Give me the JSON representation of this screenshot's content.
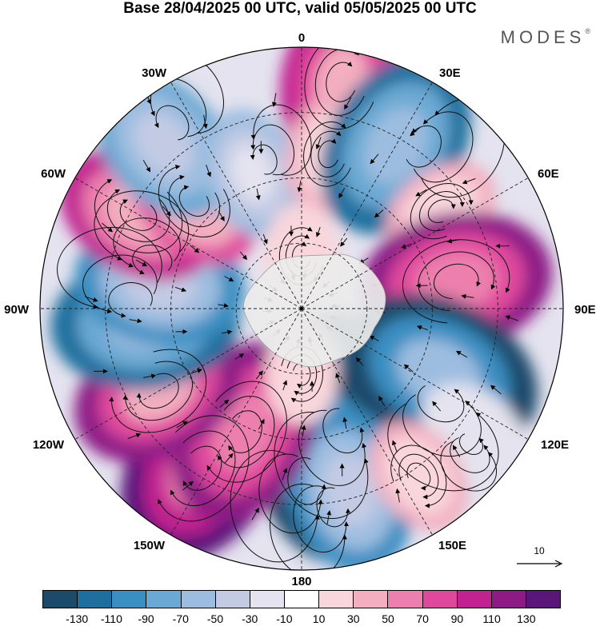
{
  "title": "Base 28/04/2025 00 UTC, valid 05/05/2025 00 UTC",
  "brand": "MODES",
  "brand_mark": "®",
  "longitude_labels": {
    "lon_0": "0",
    "lon_30e": "30E",
    "lon_60e": "60E",
    "lon_90e": "90E",
    "lon_120e": "120E",
    "lon_150e": "150E",
    "lon_180": "180",
    "lon_150w": "150W",
    "lon_120w": "120W",
    "lon_90w": "90W",
    "lon_60w": "60W",
    "lon_30w": "30W"
  },
  "reference_vector": {
    "label": "10"
  },
  "colorbar": {
    "colors": [
      "#1c4a6a",
      "#1f6f9e",
      "#3a8fc2",
      "#6aa9d3",
      "#9dbde0",
      "#c3cbe4",
      "#e4e3ef",
      "#ffffff",
      "#f9d6dc",
      "#f3aec0",
      "#ec7fae",
      "#e0489d",
      "#c12290",
      "#8e1a86",
      "#5b167a"
    ],
    "ticks": [
      "-130",
      "-110",
      "-90",
      "-70",
      "-50",
      "-30",
      "-10",
      "10",
      "30",
      "50",
      "70",
      "90",
      "110",
      "130"
    ]
  },
  "anomaly_cells": [
    {
      "lon": 150,
      "colat": 0.43,
      "value": -135
    },
    {
      "lon": 170,
      "colat": 0.6,
      "value": -135
    },
    {
      "lon": 165,
      "colat": 0.72,
      "value": -100
    },
    {
      "lon": 212,
      "colat": 0.72,
      "value": 135
    },
    {
      "lon": 205,
      "colat": 0.52,
      "value": 120
    },
    {
      "lon": 240,
      "colat": 0.63,
      "value": 110
    },
    {
      "lon": 265,
      "colat": 0.6,
      "value": -120
    },
    {
      "lon": 280,
      "colat": 0.55,
      "value": -100
    },
    {
      "lon": 300,
      "colat": 0.72,
      "value": 95
    },
    {
      "lon": 315,
      "colat": 0.58,
      "value": 70
    },
    {
      "lon": 320,
      "colat": 0.82,
      "value": -90
    },
    {
      "lon": 340,
      "colat": 0.55,
      "value": -55
    },
    {
      "lon": 10,
      "colat": 0.88,
      "value": 100
    },
    {
      "lon": 10,
      "colat": 0.6,
      "value": 40
    },
    {
      "lon": 30,
      "colat": 0.72,
      "value": -120
    },
    {
      "lon": 55,
      "colat": 0.65,
      "value": 40
    },
    {
      "lon": 80,
      "colat": 0.6,
      "value": 125
    },
    {
      "lon": 115,
      "colat": 0.58,
      "value": -140
    },
    {
      "lon": 125,
      "colat": 0.8,
      "value": -30
    },
    {
      "lon": 145,
      "colat": 0.78,
      "value": 40
    },
    {
      "lon": 180,
      "colat": 0.25,
      "value": 20
    },
    {
      "lon": 0,
      "colat": 0.2,
      "value": 25
    }
  ]
}
